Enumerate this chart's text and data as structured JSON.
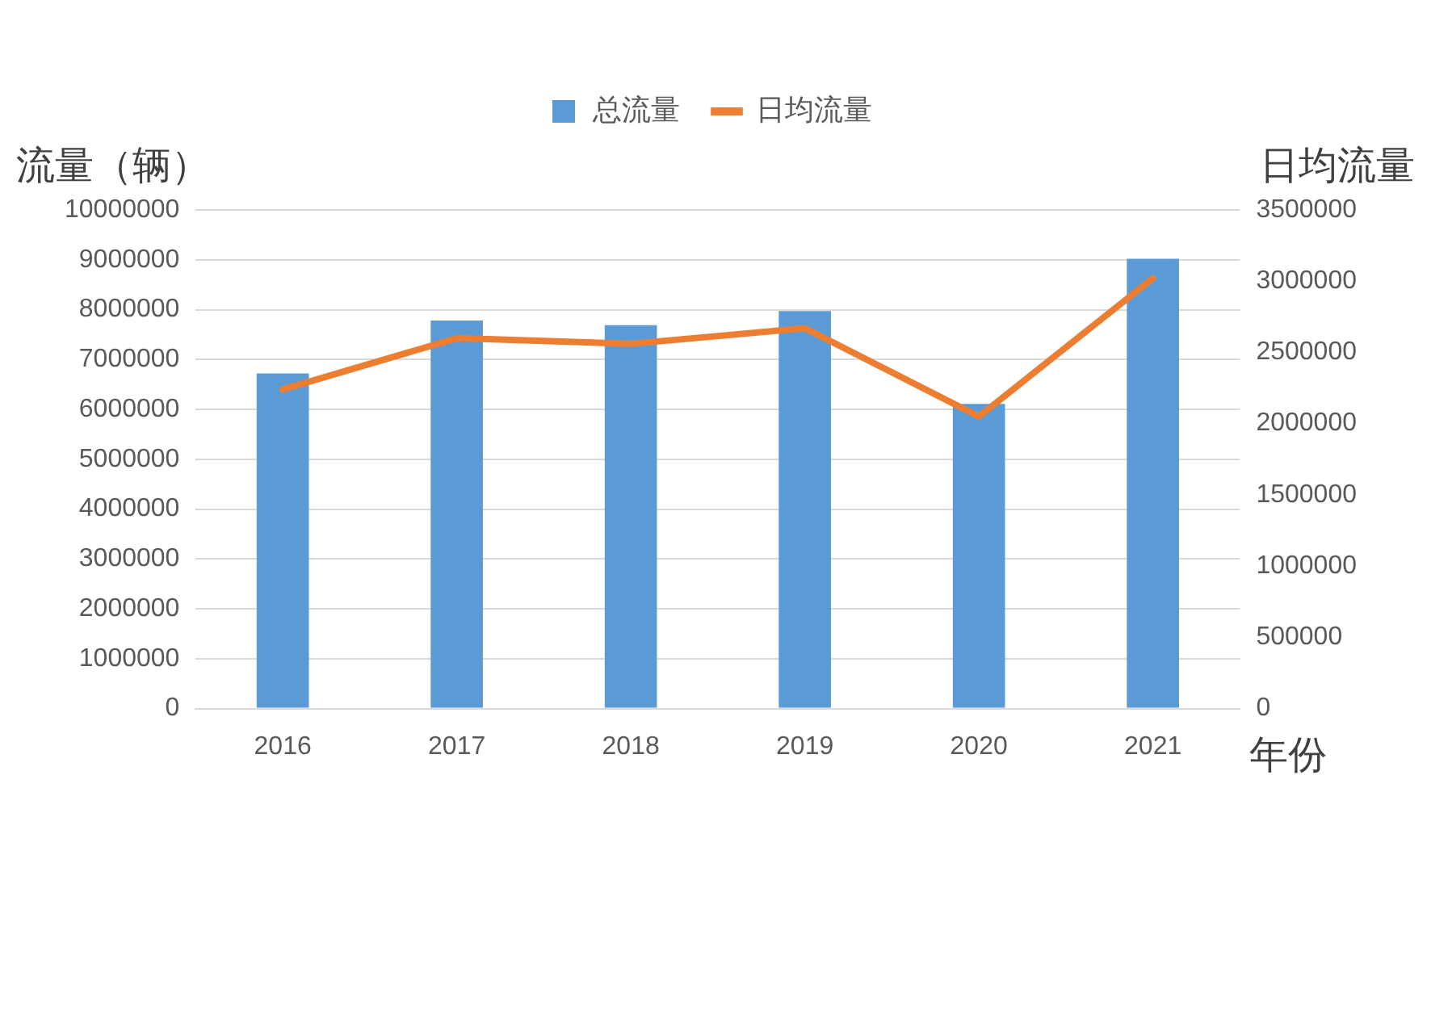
{
  "chart_data": {
    "type": "bar",
    "ylabel": "流量（辆）",
    "y2label": "日均流量",
    "xlabel": "年份",
    "categories": [
      "2016",
      "2017",
      "2018",
      "2019",
      "2020",
      "2021"
    ],
    "series": [
      {
        "name": "总流量",
        "color": "#5b9bd5",
        "values": [
          6720000,
          7780000,
          7690000,
          7970000,
          6110000,
          9020000
        ]
      },
      {
        "name": "日均流量",
        "type": "line",
        "axis": "y2",
        "color": "#ed7d31",
        "values": [
          2240000,
          2600000,
          2560000,
          2670000,
          2050000,
          3020000
        ]
      }
    ],
    "ylim": [
      0,
      10000000
    ],
    "yticks": [
      0,
      1000000,
      2000000,
      3000000,
      4000000,
      5000000,
      6000000,
      7000000,
      8000000,
      9000000,
      10000000
    ],
    "y2lim": [
      0,
      3500000
    ],
    "y2ticks": [
      0,
      500000,
      1000000,
      1500000,
      2000000,
      2500000,
      3000000,
      3500000
    ],
    "grid": "y",
    "legend": "top"
  }
}
